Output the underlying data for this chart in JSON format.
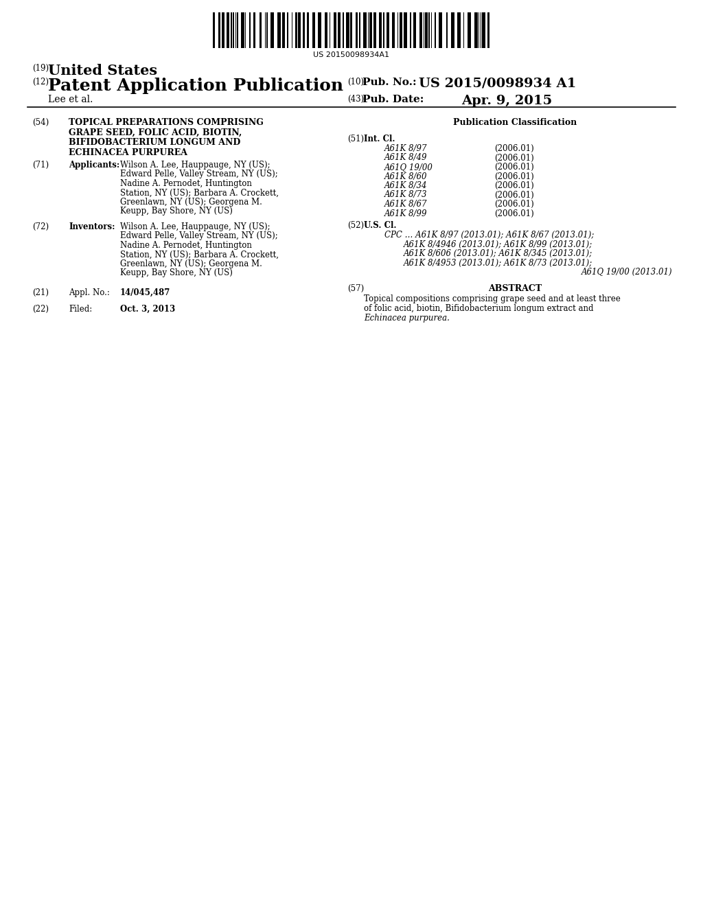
{
  "background_color": "#ffffff",
  "barcode_text": "US 20150098934A1",
  "header": {
    "num19": "(19)",
    "country": "United States",
    "num12": "(12)",
    "type": "Patent Application Publication",
    "inventor": "Lee et al.",
    "num10": "(10)",
    "pub_no_label": "Pub. No.:",
    "pub_no": "US 2015/0098934 A1",
    "num43": "(43)",
    "pub_date_label": "Pub. Date:",
    "pub_date": "Apr. 9, 2015"
  },
  "left_column": {
    "num54": "(54)",
    "title_lines": [
      "TOPICAL PREPARATIONS COMPRISING",
      "GRAPE SEED, FOLIC ACID, BIOTIN,",
      "BIFIDOBACTERIUM LONGUM AND",
      "ECHINACEA PURPUREA"
    ],
    "num71": "(71)",
    "applicants_label": "Applicants:",
    "num72": "(72)",
    "inventors_label": "Inventors:",
    "num21": "(21)",
    "appl_no_label": "Appl. No.:",
    "appl_no": "14/045,487",
    "num22": "(22)",
    "filed_label": "Filed:",
    "filed_date": "Oct. 3, 2013"
  },
  "right_column": {
    "pub_classification": "Publication Classification",
    "num51": "(51)",
    "int_cl_label": "Int. Cl.",
    "int_cl_entries": [
      [
        "A61K 8/97",
        "(2006.01)"
      ],
      [
        "A61K 8/49",
        "(2006.01)"
      ],
      [
        "A61Q 19/00",
        "(2006.01)"
      ],
      [
        "A61K 8/60",
        "(2006.01)"
      ],
      [
        "A61K 8/34",
        "(2006.01)"
      ],
      [
        "A61K 8/73",
        "(2006.01)"
      ],
      [
        "A61K 8/67",
        "(2006.01)"
      ],
      [
        "A61K 8/99",
        "(2006.01)"
      ]
    ],
    "num52": "(52)",
    "us_cl_label": "U.S. Cl.",
    "num57": "(57)",
    "abstract_label": "ABSTRACT"
  }
}
